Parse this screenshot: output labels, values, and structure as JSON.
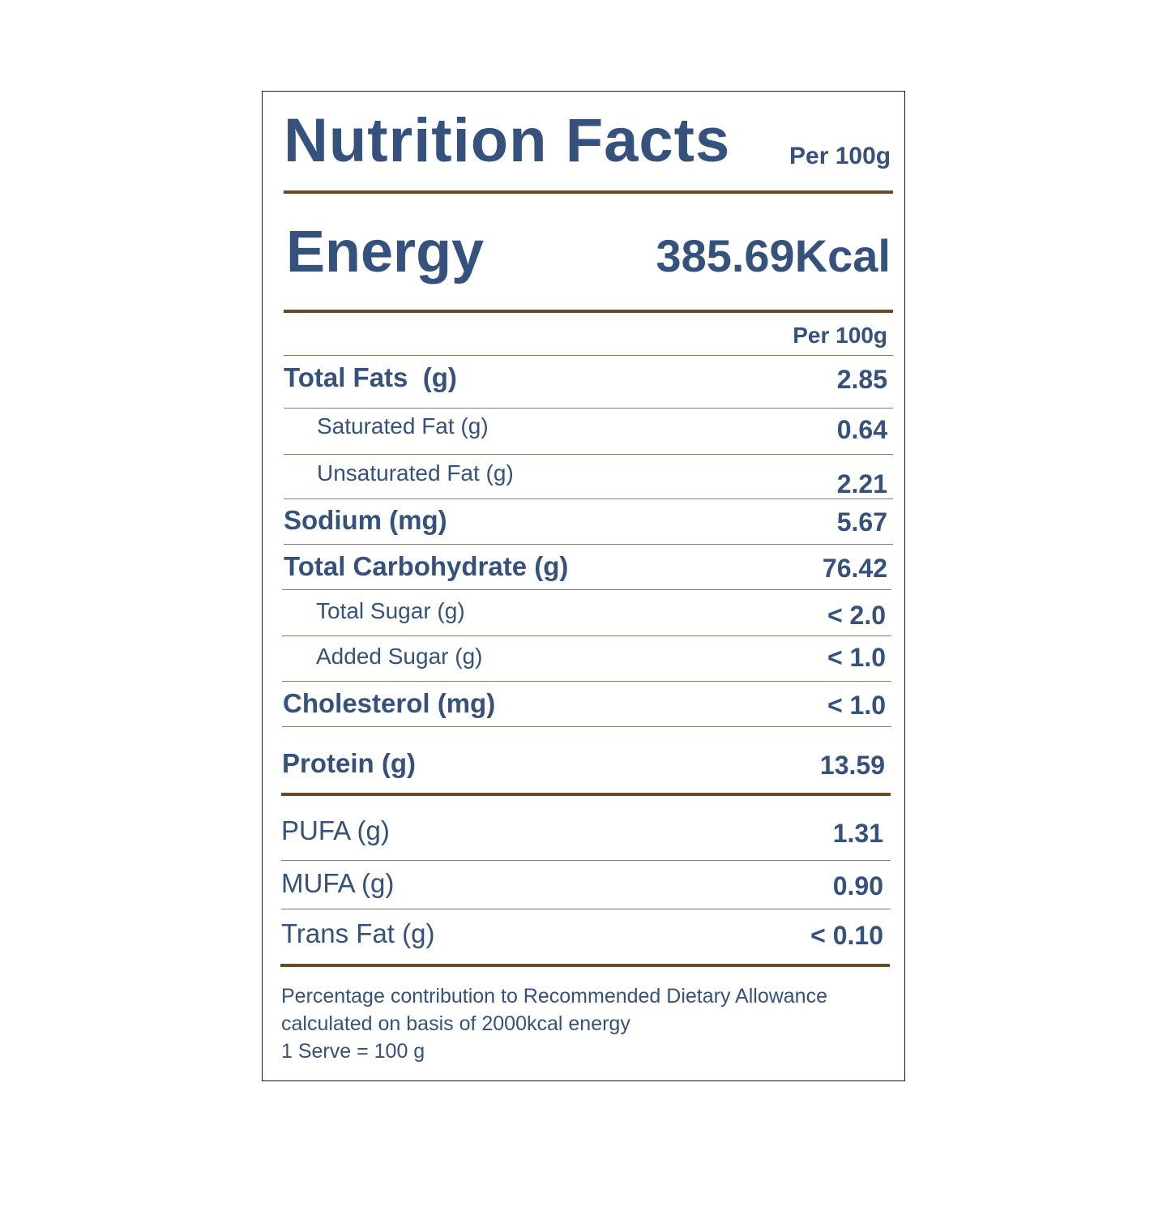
{
  "header": {
    "title": "Nutrition Facts",
    "per_label": "Per 100g"
  },
  "energy": {
    "label": "Energy",
    "value": "385.69Kcal"
  },
  "column_header": "Per 100g",
  "rows": [
    {
      "label": "Total Fats  (g)",
      "value": "2.85"
    },
    {
      "label": "Saturated Fat (g)",
      "value": "0.64"
    },
    {
      "label": "Unsaturated Fat (g)",
      "value": "2.21"
    },
    {
      "label": "Sodium (mg)",
      "value": "5.67"
    },
    {
      "label": "Total Carbohydrate (g)",
      "value": "76.42"
    },
    {
      "label": "Total Sugar (g)",
      "value": "< 2.0"
    },
    {
      "label": "Added Sugar (g)",
      "value": "< 1.0"
    },
    {
      "label": "Cholesterol (mg)",
      "value": "< 1.0"
    },
    {
      "label": "Protein (g)",
      "value": "13.59"
    },
    {
      "label": "PUFA (g)",
      "value": "1.31"
    },
    {
      "label": "MUFA (g)",
      "value": "0.90"
    },
    {
      "label": "Trans Fat (g)",
      "value": "< 0.10"
    }
  ],
  "footnote": {
    "line1": "Percentage contribution to Recommended Dietary Allowance",
    "line2": "calculated on basis of 2000kcal energy",
    "line3": "1 Serve = 100 g"
  },
  "colors": {
    "text": "#34527d",
    "rule": "#6b4a26"
  }
}
